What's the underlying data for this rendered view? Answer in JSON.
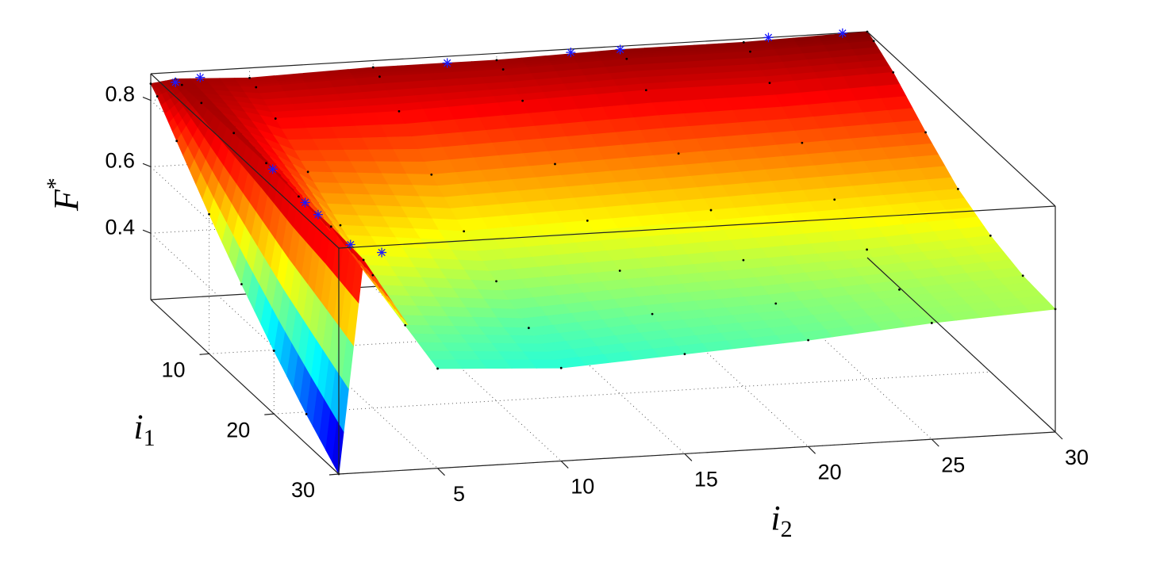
{
  "chart_data": {
    "type": "surface",
    "zlabel": {
      "text": "F",
      "superscript": "*"
    },
    "ylabel": {
      "text": "i",
      "subscript": "1"
    },
    "xlabel": {
      "text": "i",
      "subscript": "2"
    },
    "x": [
      1,
      2,
      5,
      10,
      15,
      20,
      25,
      30
    ],
    "y": [
      1,
      2,
      5,
      10,
      15,
      20,
      25,
      30
    ],
    "z": [
      [
        0.85,
        0.86,
        0.85,
        0.86,
        0.86,
        0.87,
        0.87,
        0.88
      ],
      [
        0.83,
        0.86,
        0.84,
        0.85,
        0.85,
        0.86,
        0.86,
        0.87
      ],
      [
        0.75,
        0.86,
        0.8,
        0.8,
        0.81,
        0.82,
        0.82,
        0.83
      ],
      [
        0.62,
        0.86,
        0.73,
        0.7,
        0.71,
        0.72,
        0.73,
        0.74
      ],
      [
        0.5,
        0.86,
        0.66,
        0.62,
        0.63,
        0.64,
        0.65,
        0.66
      ],
      [
        0.39,
        0.85,
        0.6,
        0.56,
        0.57,
        0.58,
        0.59,
        0.61
      ],
      [
        0.29,
        0.85,
        0.54,
        0.51,
        0.53,
        0.54,
        0.56,
        0.58
      ],
      [
        0.2,
        0.84,
        0.5,
        0.48,
        0.5,
        0.52,
        0.55,
        0.57
      ]
    ],
    "markers": {
      "color": "#1a1aff",
      "x": [
        2,
        3,
        13,
        18,
        20,
        26,
        29,
        2,
        2,
        2,
        2,
        3
      ],
      "y": [
        1,
        1,
        1,
        1,
        1,
        1,
        1,
        16,
        21,
        23,
        28,
        29
      ],
      "z": [
        0.85,
        0.86,
        0.86,
        0.87,
        0.87,
        0.88,
        0.88,
        0.86,
        0.85,
        0.85,
        0.85,
        0.84
      ]
    },
    "xlim": [
      1,
      30
    ],
    "ylim": [
      1,
      30
    ],
    "zlim": [
      0.2,
      0.88
    ],
    "xticks": [
      5,
      10,
      15,
      20,
      25,
      30
    ],
    "yticks": [
      10,
      20,
      30
    ],
    "zticks": [
      0.4,
      0.6,
      0.8
    ],
    "grid": true,
    "colormap": "jet"
  }
}
